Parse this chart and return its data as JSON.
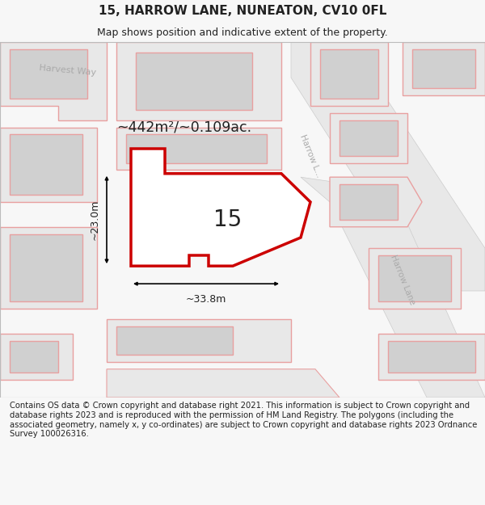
{
  "title": "15, HARROW LANE, NUNEATON, CV10 0FL",
  "subtitle": "Map shows position and indicative extent of the property.",
  "footer": "Contains OS data © Crown copyright and database right 2021. This information is subject to Crown copyright and database rights 2023 and is reproduced with the permission of HM Land Registry. The polygons (including the associated geometry, namely x, y co-ordinates) are subject to Crown copyright and database rights 2023 Ordnance Survey 100026316.",
  "bg_color": "#f7f7f7",
  "map_bg": "#f0f0f0",
  "parcel_fill": "#e8e8e8",
  "parcel_edge": "#e8a0a0",
  "building_fill": "#d0d0d0",
  "building_edge": "#e8a0a0",
  "road_fill": "#f5f5f5",
  "main_plot_fill": "#ffffff",
  "main_plot_edge": "#cc0000",
  "dim_color": "#222222",
  "text_color": "#222222",
  "road_text_color": "#aaaaaa",
  "area_label": "~442m²/~0.109ac.",
  "width_label": "~33.8m",
  "height_label": "~23.0m",
  "number_label": "15",
  "road_label_top": "Harrow L...",
  "road_label_bot": "Harrow Lane",
  "street_label": "Harvest Way"
}
